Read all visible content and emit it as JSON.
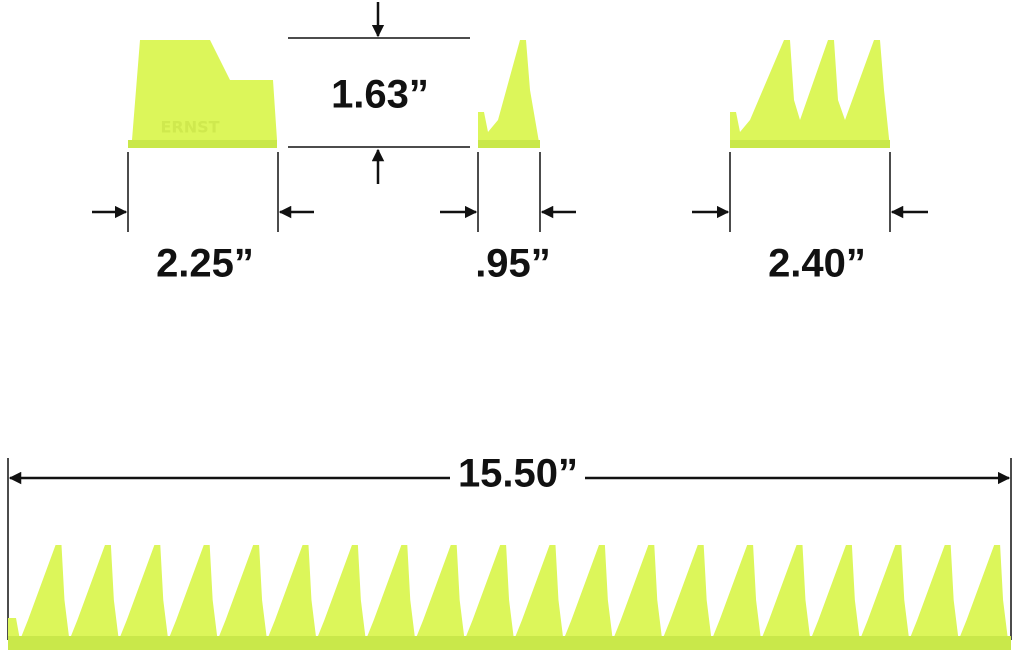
{
  "brand": "ERNST",
  "dimensions": {
    "height": "1.63”",
    "block_width": "2.25”",
    "single_width": ".95”",
    "triple_width": "2.40”",
    "rail_length": "15.50”"
  }
}
